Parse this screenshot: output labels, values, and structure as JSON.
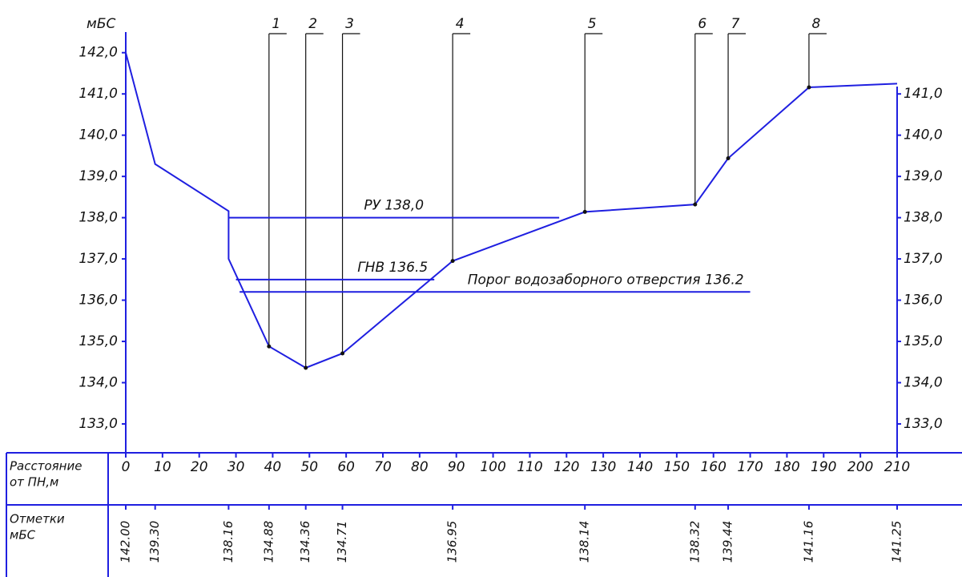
{
  "chart_data": {
    "type": "line",
    "y_label": "мБС",
    "color": "#1f1fe0",
    "x": [
      0,
      8,
      28,
      28,
      39,
      49,
      59,
      89,
      125,
      155,
      164,
      186,
      210
    ],
    "values": [
      142.0,
      139.3,
      138.16,
      137.0,
      134.88,
      134.36,
      134.71,
      136.95,
      138.14,
      138.32,
      139.44,
      141.16,
      141.25
    ],
    "value_labels": [
      "142.00",
      "139.30",
      "138.16",
      null,
      "134.88",
      "134.36",
      "134.71",
      "136.95",
      "138.14",
      "138.32",
      "139.44",
      "141.16",
      "141.25"
    ],
    "point_numbers": [
      null,
      null,
      null,
      null,
      "1",
      "2",
      "3",
      "4",
      "5",
      "6",
      "7",
      "8",
      null
    ],
    "xlim": [
      0,
      210
    ],
    "xticks": [
      0,
      10,
      20,
      30,
      40,
      50,
      60,
      70,
      80,
      90,
      100,
      110,
      120,
      130,
      140,
      150,
      160,
      170,
      180,
      190,
      200,
      210
    ],
    "ylim": [
      132.3,
      142.5
    ],
    "yticks": [
      {
        "value": 142.0,
        "label": "142,0"
      },
      {
        "value": 141.0,
        "label": "141,0"
      },
      {
        "value": 140.0,
        "label": "140,0"
      },
      {
        "value": 139.0,
        "label": "139,0"
      },
      {
        "value": 138.0,
        "label": "138,0"
      },
      {
        "value": 137.0,
        "label": "137,0"
      },
      {
        "value": 136.0,
        "label": "136,0"
      },
      {
        "value": 135.0,
        "label": "135,0"
      },
      {
        "value": 134.0,
        "label": "134,0"
      },
      {
        "value": 133.0,
        "label": "133,0"
      }
    ],
    "y2ticks": [
      {
        "value": 141.0,
        "label": "141,0"
      },
      {
        "value": 140.0,
        "label": "140,0"
      },
      {
        "value": 139.0,
        "label": "139,0"
      },
      {
        "value": 138.0,
        "label": "138,0"
      },
      {
        "value": 137.0,
        "label": "137,0"
      },
      {
        "value": 136.0,
        "label": "136,0"
      },
      {
        "value": 135.0,
        "label": "135,0"
      },
      {
        "value": 134.0,
        "label": "134,0"
      },
      {
        "value": 133.0,
        "label": "133,0"
      }
    ],
    "levels": [
      {
        "label": "РУ 138,0",
        "value": 138.0,
        "x": [
          28,
          118
        ]
      },
      {
        "label": "ГНВ 136.5",
        "value": 136.5,
        "x": [
          30,
          84
        ]
      },
      {
        "label": "Порог водозаборного отверстия 136.2",
        "value": 136.2,
        "x": [
          31,
          170
        ]
      }
    ],
    "table_rows": [
      [
        "Расстояние",
        "от ПН,м"
      ],
      [
        "Отметки",
        "мБС"
      ]
    ]
  }
}
